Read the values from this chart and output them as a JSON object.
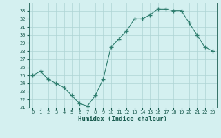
{
  "x": [
    0,
    1,
    2,
    3,
    4,
    5,
    6,
    7,
    8,
    9,
    10,
    11,
    12,
    13,
    14,
    15,
    16,
    17,
    18,
    19,
    20,
    21,
    22,
    23
  ],
  "y": [
    25.0,
    25.5,
    24.5,
    24.0,
    23.5,
    22.5,
    21.5,
    21.2,
    22.5,
    24.5,
    28.5,
    29.5,
    30.5,
    32.0,
    32.0,
    32.5,
    33.2,
    33.2,
    33.0,
    33.0,
    31.5,
    30.0,
    28.5,
    28.0
  ],
  "xlabel": "Humidex (Indice chaleur)",
  "ylim": [
    21,
    34
  ],
  "xlim": [
    -0.5,
    23.5
  ],
  "yticks": [
    21,
    22,
    23,
    24,
    25,
    26,
    27,
    28,
    29,
    30,
    31,
    32,
    33
  ],
  "xtick_labels": [
    "0",
    "1",
    "2",
    "3",
    "4",
    "5",
    "6",
    "7",
    "8",
    "9",
    "10",
    "11",
    "12",
    "13",
    "14",
    "15",
    "16",
    "17",
    "18",
    "19",
    "20",
    "21",
    "22",
    "23"
  ],
  "line_color": "#2e7d6e",
  "marker": "+",
  "bg_color": "#d4f0f0",
  "grid_color": "#aed4d4",
  "label_color": "#1a5c50",
  "tick_color": "#1a5c50"
}
